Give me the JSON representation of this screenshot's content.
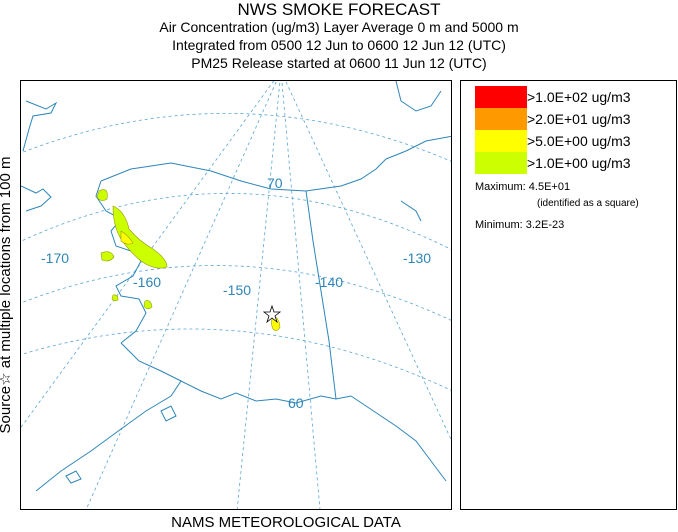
{
  "title": "NWS SMOKE FORECAST",
  "subtitle1": "Air Concentration (ug/m3) Layer Average    0 m and  5000 m",
  "subtitle2": "Integrated from 0500 12 Jun to 0600 12 Jun 12 (UTC)",
  "subtitle3": "PM25 Release started at 0600 11 Jun 12 (UTC)",
  "side_label": "Source☆ at multiple locations   from   100 m",
  "footer": "NAMS METEOROLOGICAL DATA",
  "map": {
    "lon_labels": [
      "-170",
      "-160",
      "-150",
      "-140",
      "-130"
    ],
    "lat_labels": [
      "70",
      "60"
    ],
    "line_color": "#2e86b8",
    "grid_color": "#5aa6d6"
  },
  "legend": {
    "items": [
      {
        "label": ">1.0E+02 ug/m3",
        "color": "#ff0000"
      },
      {
        "label": ">2.0E+01 ug/m3",
        "color": "#ff9900"
      },
      {
        "label": ">5.0E+00 ug/m3",
        "color": "#ffff00"
      },
      {
        "label": ">1.0E+00 ug/m3",
        "color": "#ccff00"
      }
    ],
    "maximum": "Maximum: 4.5E+01",
    "max_note": "(identified as a square)",
    "minimum": "Minimum: 3.2E-23"
  }
}
